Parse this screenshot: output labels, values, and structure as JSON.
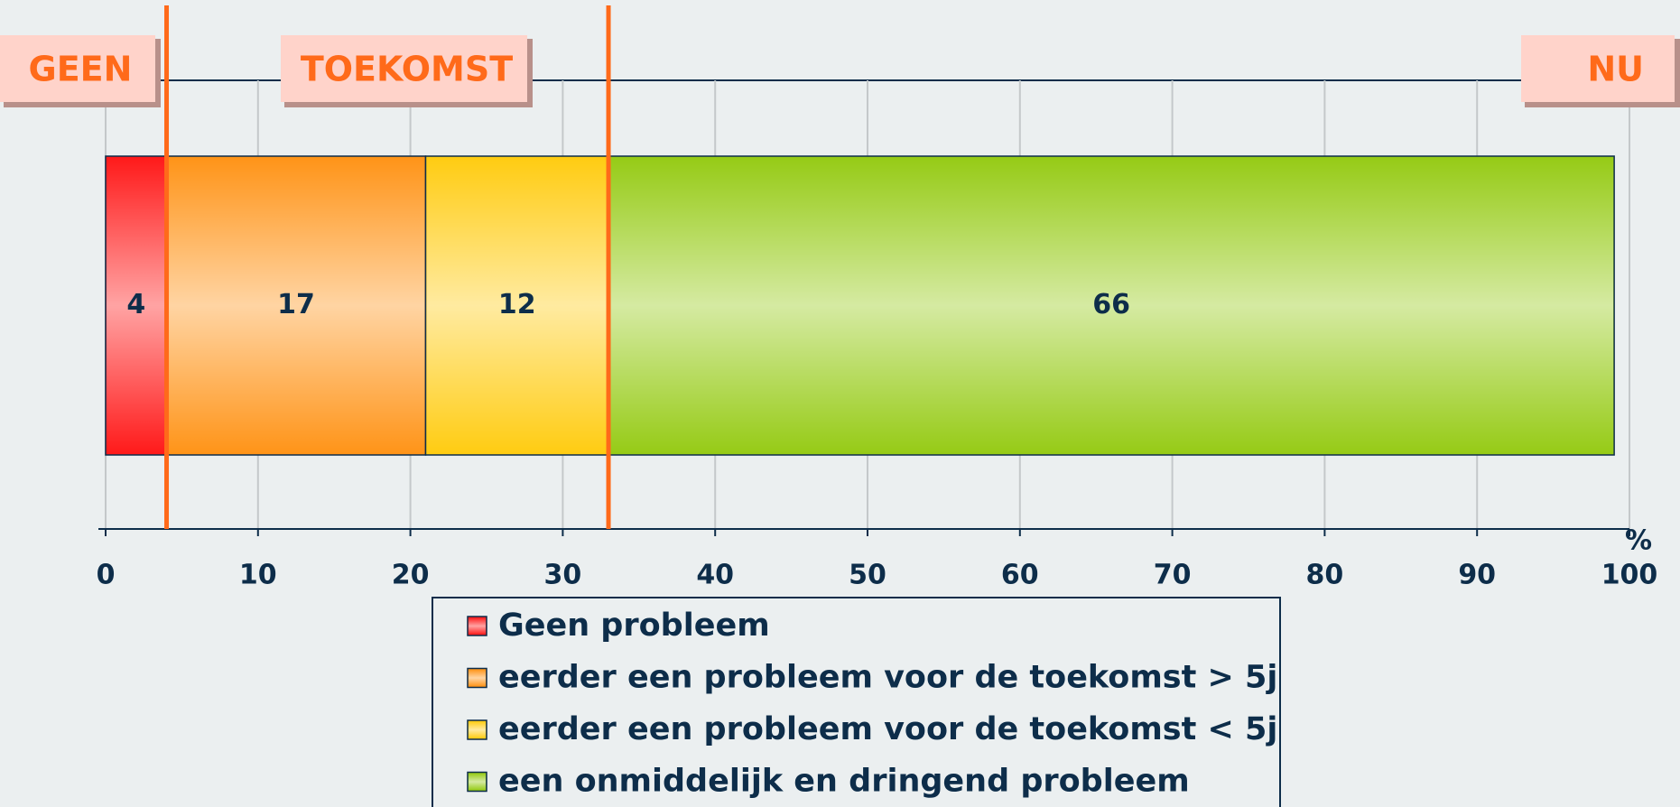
{
  "chart_data": {
    "type": "stacked_barh",
    "series": [
      {
        "name": "Geen probleem",
        "color": "#ff1a1a",
        "values": [
          4
        ]
      },
      {
        "name": "eerder een probleem voor de toekomst > 5j",
        "color": "#ff9418",
        "values": [
          17
        ]
      },
      {
        "name": "eerder een probleem voor de toekomst < 5j",
        "color": "#ffcc12",
        "values": [
          12
        ]
      },
      {
        "name": "een onmiddelijk en dringend probleem",
        "color": "#96cb16",
        "values": [
          66
        ]
      }
    ],
    "xlim": [
      0,
      100
    ],
    "xticks": [
      0,
      10,
      20,
      30,
      40,
      50,
      60,
      70,
      80,
      90,
      100
    ],
    "xlabel": "%",
    "grid": true,
    "annotations": [
      "GEEN",
      "TOEKOMST",
      "NU"
    ]
  }
}
